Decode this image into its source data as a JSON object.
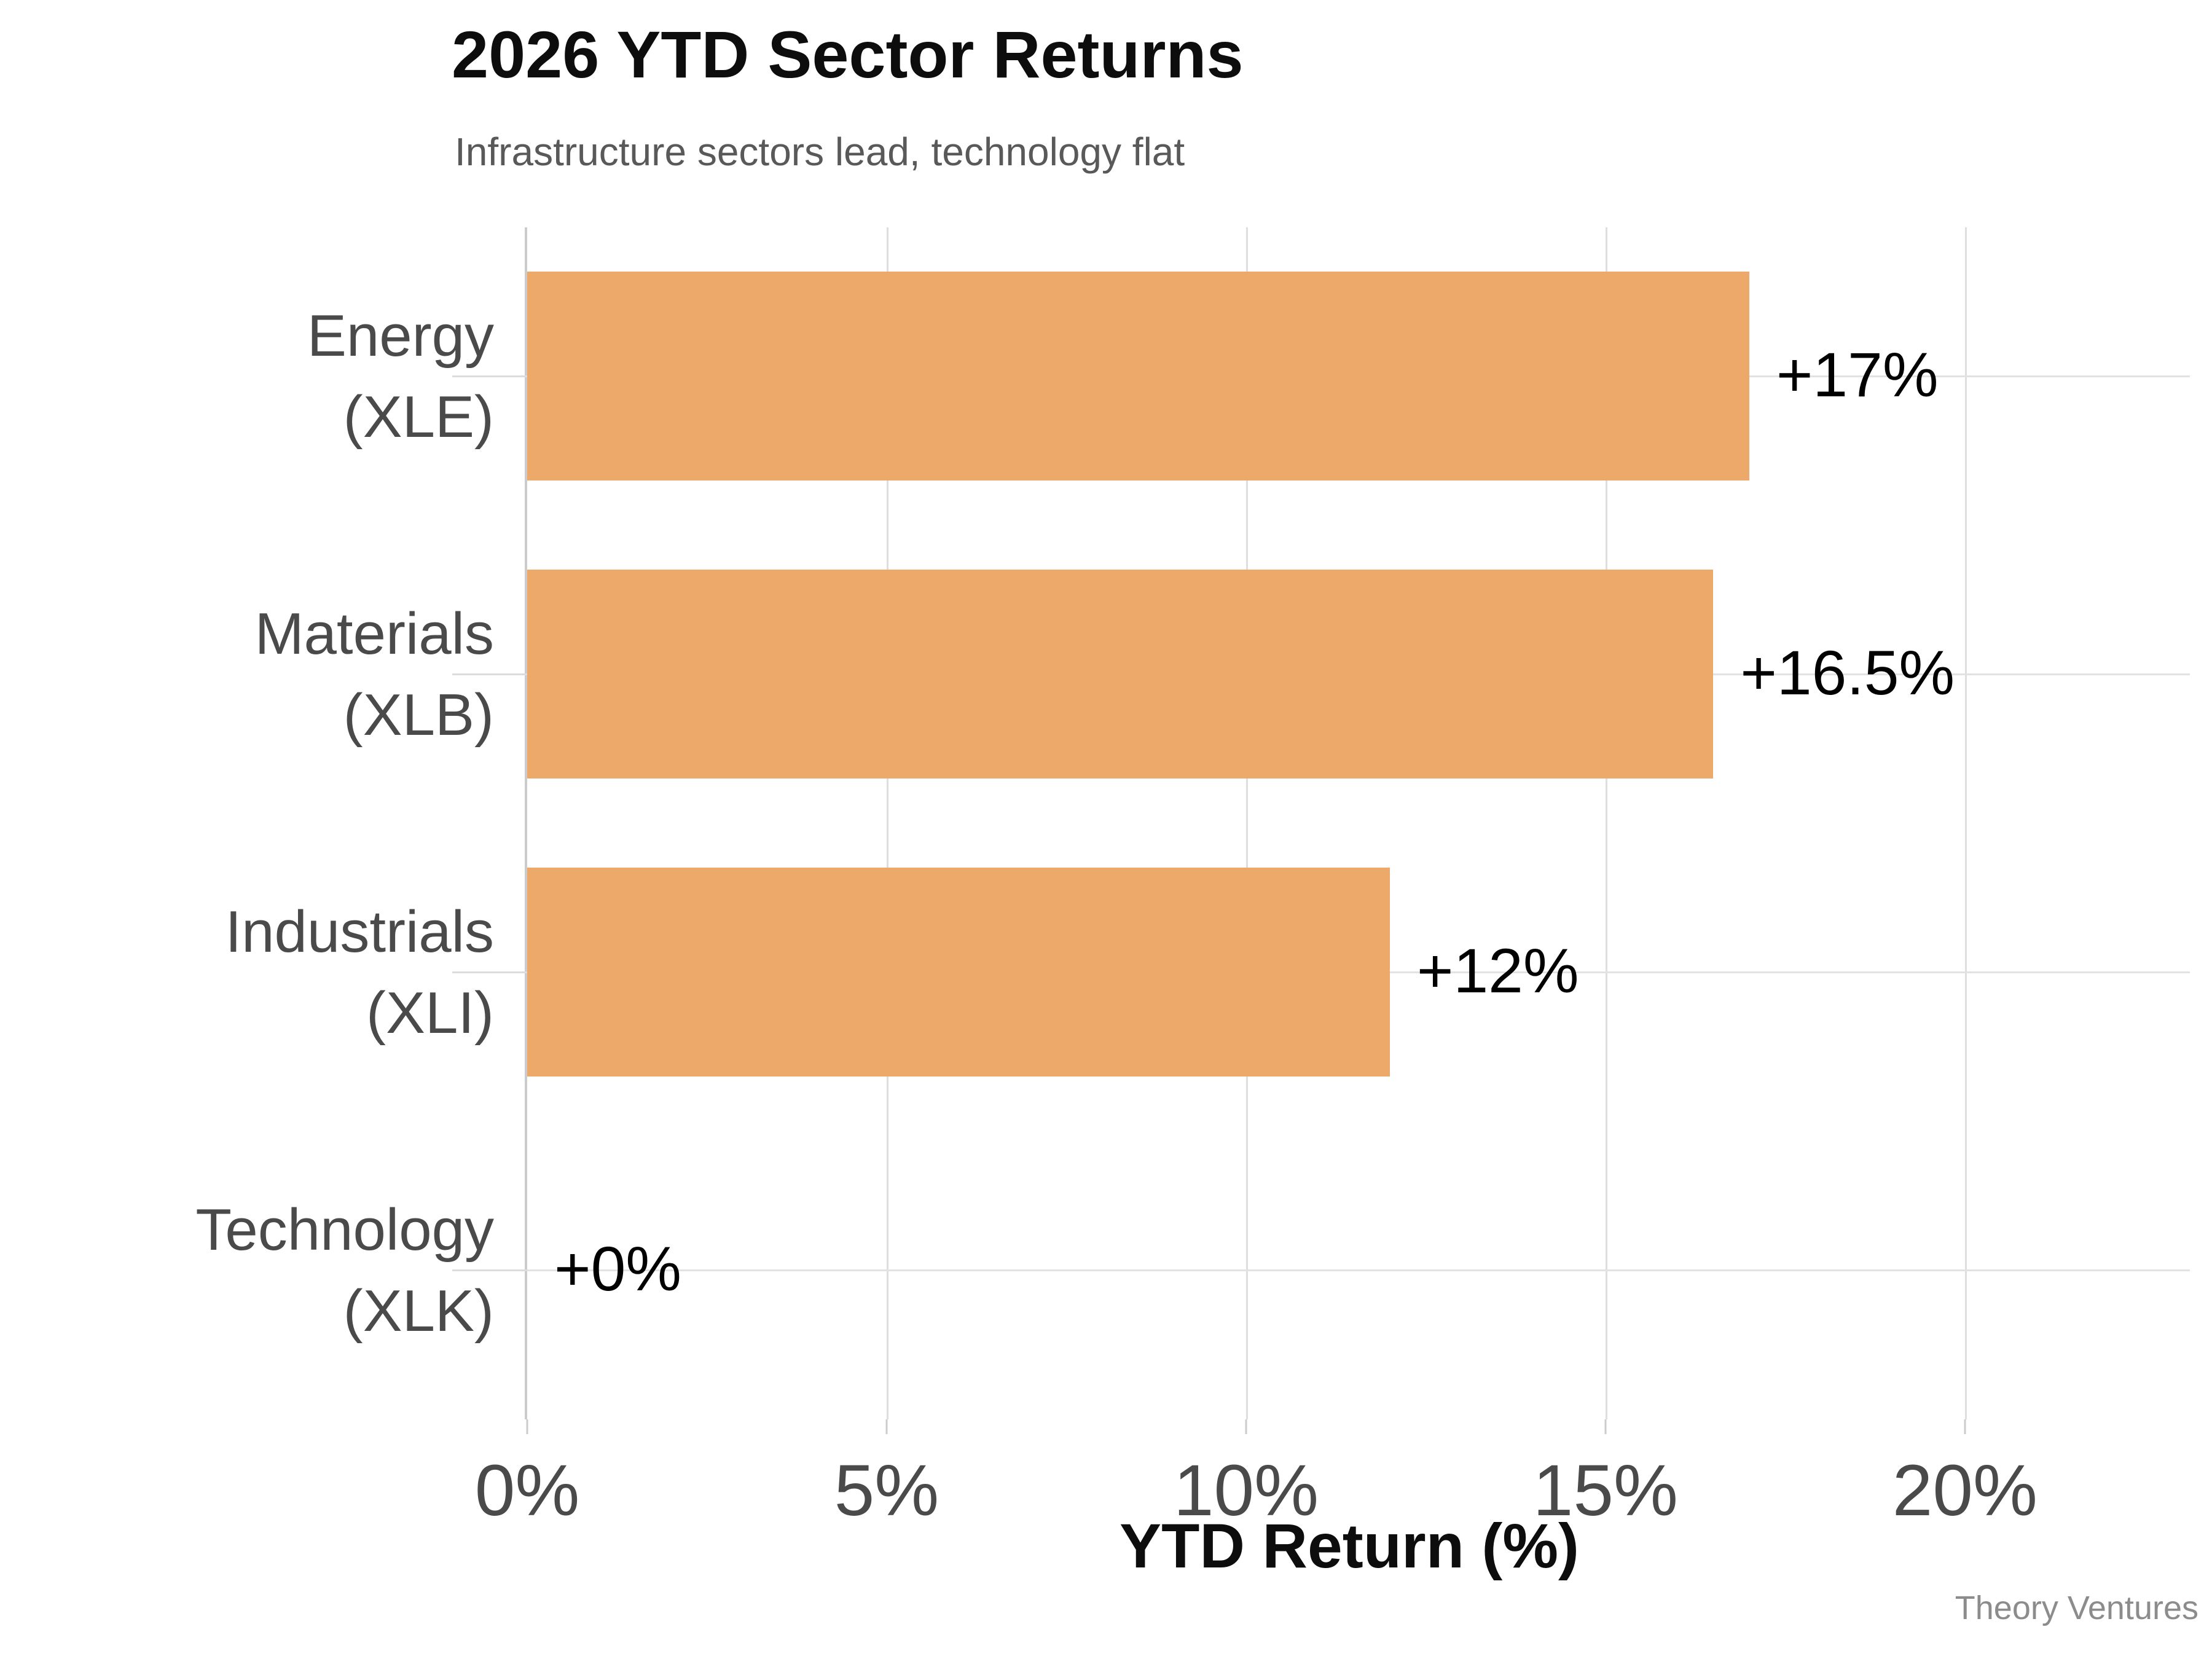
{
  "title": "2026 YTD Sector Returns",
  "subtitle": "Infrastructure sectors lead, technology flat",
  "attribution": "Theory Ventures",
  "chart_data": {
    "type": "bar",
    "orientation": "horizontal",
    "title": "2026 YTD Sector Returns",
    "subtitle": "Infrastructure sectors lead, technology flat",
    "xlabel": "YTD Return (%)",
    "categories": [
      "Energy (XLE)",
      "Materials (XLB)",
      "Industrials (XLI)",
      "Technology (XLK)"
    ],
    "values": [
      17,
      16.5,
      12,
      0
    ],
    "bars": [
      {
        "label_line1": "Energy",
        "label_line2": "(XLE)",
        "value": 17,
        "value_label": "+17%"
      },
      {
        "label_line1": "Materials",
        "label_line2": "(XLB)",
        "value": 16.5,
        "value_label": "+16.5%"
      },
      {
        "label_line1": "Industrials",
        "label_line2": "(XLI)",
        "value": 12,
        "value_label": "+12%"
      },
      {
        "label_line1": "Technology",
        "label_line2": "(XLK)",
        "value": 0,
        "value_label": "+0%"
      }
    ],
    "xticks": [
      {
        "value": 0,
        "label": "0%"
      },
      {
        "value": 5,
        "label": "5%"
      },
      {
        "value": 10,
        "label": "10%"
      },
      {
        "value": 15,
        "label": "15%"
      },
      {
        "value": 20,
        "label": "20%"
      }
    ],
    "xlim": [
      0,
      23.13
    ],
    "grid": true,
    "legend": false,
    "colors": {
      "bar": "#ECA96A",
      "gridline": "#E0E0E0",
      "axis_line": "#CCCCCC",
      "title": "#0D0D0D",
      "subtitle": "#595959",
      "category_label": "#4A4A4A",
      "tick_label": "#4A4A4A",
      "value_label": "#000000",
      "attribution": "#8C8C8C"
    }
  }
}
